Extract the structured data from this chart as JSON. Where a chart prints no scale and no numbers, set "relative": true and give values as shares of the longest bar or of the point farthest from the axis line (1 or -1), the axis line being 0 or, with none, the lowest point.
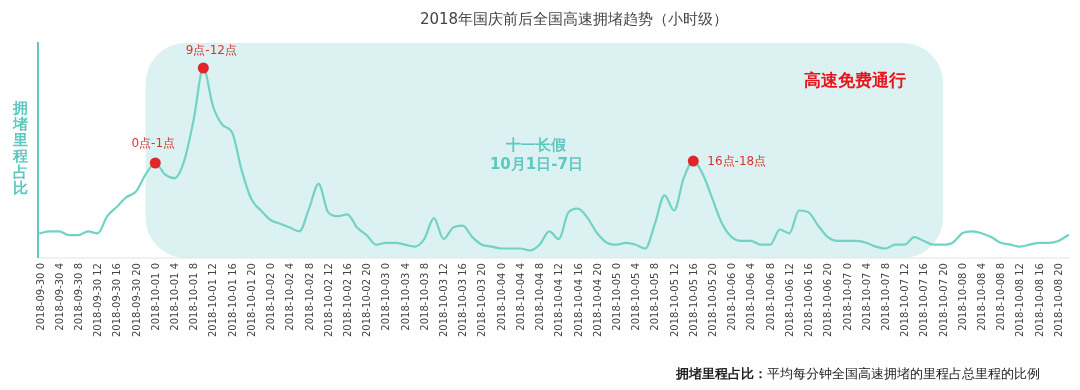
{
  "chart_data": {
    "type": "line",
    "title": "2018年国庆前后全国高速拥堵趋势（小时级）",
    "ylabel": "拥堵里程占比",
    "relative": true,
    "marker": "none",
    "line_style": "solid",
    "x": [
      "2018-09-30T00:00",
      "2018-09-30T02:00",
      "2018-09-30T04:00",
      "2018-09-30T06:00",
      "2018-09-30T08:00",
      "2018-09-30T10:00",
      "2018-09-30T12:00",
      "2018-09-30T14:00",
      "2018-09-30T16:00",
      "2018-09-30T18:00",
      "2018-09-30T20:00",
      "2018-09-30T22:00",
      "2018-10-01T00:00",
      "2018-10-01T02:00",
      "2018-10-01T04:00",
      "2018-10-01T06:00",
      "2018-10-01T08:00",
      "2018-10-01T10:00",
      "2018-10-01T12:00",
      "2018-10-01T14:00",
      "2018-10-01T16:00",
      "2018-10-01T18:00",
      "2018-10-01T20:00",
      "2018-10-01T22:00",
      "2018-10-02T00:00",
      "2018-10-02T02:00",
      "2018-10-02T04:00",
      "2018-10-02T06:00",
      "2018-10-02T08:00",
      "2018-10-02T10:00",
      "2018-10-02T12:00",
      "2018-10-02T14:00",
      "2018-10-02T16:00",
      "2018-10-02T18:00",
      "2018-10-02T20:00",
      "2018-10-02T22:00",
      "2018-10-03T00:00",
      "2018-10-03T02:00",
      "2018-10-03T04:00",
      "2018-10-03T06:00",
      "2018-10-03T08:00",
      "2018-10-03T10:00",
      "2018-10-03T12:00",
      "2018-10-03T14:00",
      "2018-10-03T16:00",
      "2018-10-03T18:00",
      "2018-10-03T20:00",
      "2018-10-03T22:00",
      "2018-10-04T00:00",
      "2018-10-04T02:00",
      "2018-10-04T04:00",
      "2018-10-04T06:00",
      "2018-10-04T08:00",
      "2018-10-04T10:00",
      "2018-10-04T12:00",
      "2018-10-04T14:00",
      "2018-10-04T16:00",
      "2018-10-04T18:00",
      "2018-10-04T20:00",
      "2018-10-04T22:00",
      "2018-10-05T00:00",
      "2018-10-05T02:00",
      "2018-10-05T04:00",
      "2018-10-05T06:00",
      "2018-10-05T08:00",
      "2018-10-05T10:00",
      "2018-10-05T12:00",
      "2018-10-05T14:00",
      "2018-10-05T16:00",
      "2018-10-05T18:00",
      "2018-10-05T20:00",
      "2018-10-05T22:00",
      "2018-10-06T00:00",
      "2018-10-06T02:00",
      "2018-10-06T04:00",
      "2018-10-06T06:00",
      "2018-10-06T08:00",
      "2018-10-06T10:00",
      "2018-10-06T12:00",
      "2018-10-06T14:00",
      "2018-10-06T16:00",
      "2018-10-06T18:00",
      "2018-10-06T20:00",
      "2018-10-06T22:00",
      "2018-10-07T00:00",
      "2018-10-07T02:00",
      "2018-10-07T04:00",
      "2018-10-07T06:00",
      "2018-10-07T08:00",
      "2018-10-07T10:00",
      "2018-10-07T12:00",
      "2018-10-07T14:00",
      "2018-10-07T16:00",
      "2018-10-07T18:00",
      "2018-10-07T20:00",
      "2018-10-07T22:00",
      "2018-10-08T00:00",
      "2018-10-08T02:00",
      "2018-10-08T04:00",
      "2018-10-08T06:00",
      "2018-10-08T08:00",
      "2018-10-08T10:00",
      "2018-10-08T12:00",
      "2018-10-08T14:00",
      "2018-10-08T16:00",
      "2018-10-08T18:00",
      "2018-10-08T20:00",
      "2018-10-08T22:00"
    ],
    "series": [
      {
        "color": "#72d3c4",
        "values": [
          0.13,
          0.14,
          0.14,
          0.12,
          0.12,
          0.14,
          0.13,
          0.22,
          0.27,
          0.32,
          0.35,
          0.44,
          0.5,
          0.44,
          0.42,
          0.51,
          0.73,
          1,
          0.8,
          0.7,
          0.66,
          0.46,
          0.31,
          0.25,
          0.2,
          0.18,
          0.16,
          0.14,
          0.26,
          0.39,
          0.24,
          0.22,
          0.23,
          0.16,
          0.12,
          0.07,
          0.08,
          0.08,
          0.07,
          0.06,
          0.1,
          0.21,
          0.1,
          0.16,
          0.17,
          0.11,
          0.07,
          0.06,
          0.05,
          0.05,
          0.05,
          0.04,
          0.07,
          0.14,
          0.1,
          0.24,
          0.26,
          0.21,
          0.13,
          0.08,
          0.07,
          0.08,
          0.07,
          0.05,
          0.18,
          0.33,
          0.25,
          0.42,
          0.51,
          0.44,
          0.31,
          0.18,
          0.11,
          0.09,
          0.09,
          0.07,
          0.07,
          0.15,
          0.13,
          0.25,
          0.24,
          0.17,
          0.11,
          0.09,
          0.09,
          0.09,
          0.08,
          0.06,
          0.05,
          0.07,
          0.07,
          0.11,
          0.09,
          0.07,
          0.07,
          0.08,
          0.13,
          0.14,
          0.13,
          0.11,
          0.08,
          0.07,
          0.06,
          0.07,
          0.08,
          0.08,
          0.09,
          0.12
        ]
      }
    ],
    "xlim": [
      "2018-09-30T00:00",
      "2018-10-08T22:00"
    ],
    "xticks": [
      {
        "value": "2018-09-30T00:00",
        "label": "2018-09-30 0"
      },
      {
        "value": "2018-09-30T04:00",
        "label": "2018-09-30 4"
      },
      {
        "value": "2018-09-30T08:00",
        "label": "2018-09-30 8"
      },
      {
        "value": "2018-09-30T12:00",
        "label": "2018-09-30 12"
      },
      {
        "value": "2018-09-30T16:00",
        "label": "2018-09-30 16"
      },
      {
        "value": "2018-09-30T20:00",
        "label": "2018-09-30 20"
      },
      {
        "value": "2018-10-01T00:00",
        "label": "2018-10-01 0"
      },
      {
        "value": "2018-10-01T04:00",
        "label": "2018-10-01 4"
      },
      {
        "value": "2018-10-01T08:00",
        "label": "2018-10-01 8"
      },
      {
        "value": "2018-10-01T12:00",
        "label": "2018-10-01 12"
      },
      {
        "value": "2018-10-01T16:00",
        "label": "2018-10-01 16"
      },
      {
        "value": "2018-10-01T20:00",
        "label": "2018-10-01 20"
      },
      {
        "value": "2018-10-02T00:00",
        "label": "2018-10-02 0"
      },
      {
        "value": "2018-10-02T04:00",
        "label": "2018-10-02 4"
      },
      {
        "value": "2018-10-02T08:00",
        "label": "2018-10-02 8"
      },
      {
        "value": "2018-10-02T12:00",
        "label": "2018-10-02 12"
      },
      {
        "value": "2018-10-02T16:00",
        "label": "2018-10-02 16"
      },
      {
        "value": "2018-10-02T20:00",
        "label": "2018-10-02 20"
      },
      {
        "value": "2018-10-03T00:00",
        "label": "2018-10-03 0"
      },
      {
        "value": "2018-10-03T04:00",
        "label": "2018-10-03 4"
      },
      {
        "value": "2018-10-03T08:00",
        "label": "2018-10-03 8"
      },
      {
        "value": "2018-10-03T12:00",
        "label": "2018-10-03 12"
      },
      {
        "value": "2018-10-03T16:00",
        "label": "2018-10-03 16"
      },
      {
        "value": "2018-10-03T20:00",
        "label": "2018-10-03 20"
      },
      {
        "value": "2018-10-04T00:00",
        "label": "2018-10-04 0"
      },
      {
        "value": "2018-10-04T04:00",
        "label": "2018-10-04 4"
      },
      {
        "value": "2018-10-04T08:00",
        "label": "2018-10-04 8"
      },
      {
        "value": "2018-10-04T12:00",
        "label": "2018-10-04 12"
      },
      {
        "value": "2018-10-04T16:00",
        "label": "2018-10-04 16"
      },
      {
        "value": "2018-10-04T20:00",
        "label": "2018-10-04 20"
      },
      {
        "value": "2018-10-05T00:00",
        "label": "2018-10-05 0"
      },
      {
        "value": "2018-10-05T04:00",
        "label": "2018-10-05 4"
      },
      {
        "value": "2018-10-05T08:00",
        "label": "2018-10-05 8"
      },
      {
        "value": "2018-10-05T12:00",
        "label": "2018-10-05 12"
      },
      {
        "value": "2018-10-05T16:00",
        "label": "2018-10-05 16"
      },
      {
        "value": "2018-10-05T20:00",
        "label": "2018-10-05 20"
      },
      {
        "value": "2018-10-06T00:00",
        "label": "2018-10-06 0"
      },
      {
        "value": "2018-10-06T04:00",
        "label": "2018-10-06 4"
      },
      {
        "value": "2018-10-06T08:00",
        "label": "2018-10-06 8"
      },
      {
        "value": "2018-10-06T12:00",
        "label": "2018-10-06 12"
      },
      {
        "value": "2018-10-06T16:00",
        "label": "2018-10-06 16"
      },
      {
        "value": "2018-10-06T20:00",
        "label": "2018-10-06 20"
      },
      {
        "value": "2018-10-07T00:00",
        "label": "2018-10-07 0"
      },
      {
        "value": "2018-10-07T04:00",
        "label": "2018-10-07 4"
      },
      {
        "value": "2018-10-07T08:00",
        "label": "2018-10-07 8"
      },
      {
        "value": "2018-10-07T12:00",
        "label": "2018-10-07 12"
      },
      {
        "value": "2018-10-07T16:00",
        "label": "2018-10-07 16"
      },
      {
        "value": "2018-10-07T20:00",
        "label": "2018-10-07 20"
      },
      {
        "value": "2018-10-08T00:00",
        "label": "2018-10-08 0"
      },
      {
        "value": "2018-10-08T04:00",
        "label": "2018-10-08 4"
      },
      {
        "value": "2018-10-08T08:00",
        "label": "2018-10-08 8"
      },
      {
        "value": "2018-10-08T12:00",
        "label": "2018-10-08 12"
      },
      {
        "value": "2018-10-08T16:00",
        "label": "2018-10-08 16"
      },
      {
        "value": "2018-10-08T20:00",
        "label": "2018-10-08 20"
      }
    ],
    "bands": [
      {
        "axis": "x",
        "from": "2018-09-30T22:00",
        "to": "2018-10-07T20:00",
        "label": "十一长假\n10月1日-7日",
        "color": "#dcf1f1"
      }
    ],
    "annotations": [
      {
        "text": "0点-1点",
        "x": "2018-10-01T00:00",
        "y": 0.5
      },
      {
        "text": "9点-12点",
        "x": "2018-10-01T10:00",
        "y": 1
      },
      {
        "text": "16点-18点",
        "x": "2018-10-05T16:00",
        "y": 0.51
      },
      "高速免费通行",
      "拥堵里程占比：平均每分钟全国高速拥堵的里程占总里程的比例"
    ]
  }
}
